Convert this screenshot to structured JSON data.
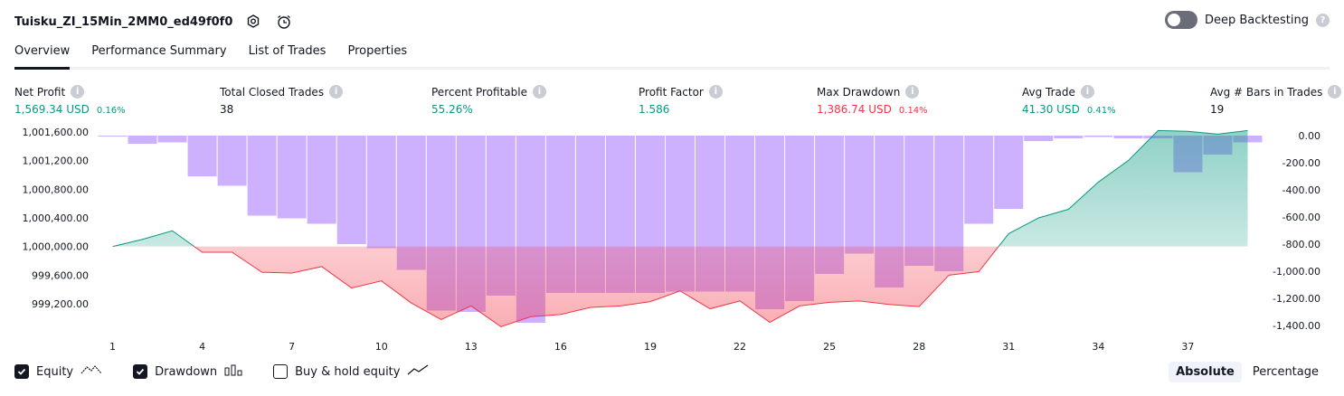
{
  "header": {
    "title": "Tuisku_ZI_15Min_2MM0_ed49f0f0",
    "settings_icon": "gear-icon",
    "alert_icon": "alarm-add-icon"
  },
  "deep_backtesting": {
    "label": "Deep Backtesting",
    "enabled": false,
    "help": "?"
  },
  "tabs": [
    {
      "label": "Overview",
      "active": true
    },
    {
      "label": "Performance Summary"
    },
    {
      "label": "List of Trades"
    },
    {
      "label": "Properties"
    }
  ],
  "metrics": [
    {
      "label": "Net Profit",
      "value": "1,569.34 USD",
      "pct": "0.16%",
      "color": "green"
    },
    {
      "label": "Total Closed Trades",
      "value": "38",
      "pct": "",
      "color": "dark"
    },
    {
      "label": "Percent Profitable",
      "value": "55.26%",
      "pct": "",
      "color": "green"
    },
    {
      "label": "Profit Factor",
      "value": "1.586",
      "pct": "",
      "color": "green"
    },
    {
      "label": "Max Drawdown",
      "value": "1,386.74 USD",
      "pct": "0.14%",
      "color": "red"
    },
    {
      "label": "Avg Trade",
      "value": "41.30 USD",
      "pct": "0.41%",
      "color": "green"
    },
    {
      "label": "Avg # Bars in Trades",
      "value": "19",
      "pct": "",
      "color": "dark"
    }
  ],
  "colors": {
    "green": "#089981",
    "red": "#f23645",
    "drawdown": "#c4a3ff",
    "buyhold": "#2962ff"
  },
  "chart_data": {
    "type": "line",
    "left_axis": {
      "ticks": [
        "1,001,600.00",
        "1,001,200.00",
        "1,000,800.00",
        "1,000,400.00",
        "1,000,000.00",
        "999,600.00",
        "999,200.00"
      ],
      "ylim": [
        999000,
        1001700
      ]
    },
    "right_axis": {
      "ticks": [
        "0.00",
        "-200.00",
        "-400.00",
        "-600.00",
        "-800.00",
        "-1,000.00",
        "-1,200.00",
        "-1,400.00"
      ],
      "ylim": [
        -1400,
        0
      ]
    },
    "x_ticks": [
      "1",
      "4",
      "7",
      "10",
      "13",
      "16",
      "19",
      "22",
      "25",
      "28",
      "31",
      "34",
      "37"
    ],
    "equity": [
      1000000,
      1000100,
      1000220,
      999920,
      999920,
      999640,
      999630,
      999720,
      999420,
      999520,
      999210,
      998980,
      999170,
      998880,
      999020,
      999050,
      999150,
      999170,
      999230,
      999380,
      999130,
      999240,
      998940,
      999170,
      999220,
      999240,
      999190,
      999160,
      999600,
      999650,
      1000180,
      1000400,
      1000520,
      1000900,
      1001200,
      1001620,
      1001610,
      1001570,
      1001620
    ],
    "drawdown": [
      -5,
      -60,
      -50,
      -300,
      -370,
      -590,
      -610,
      -650,
      -800,
      -830,
      -990,
      -1290,
      -1300,
      -1180,
      -1380,
      -1160,
      -1160,
      -1160,
      -1160,
      -1150,
      -1150,
      -1150,
      -1280,
      -1220,
      -1020,
      -870,
      -1120,
      -960,
      -1000,
      -650,
      -540,
      -40,
      -20,
      -10,
      -20,
      -20,
      -270,
      -140,
      -50
    ],
    "series": [
      {
        "name": "Equity"
      },
      {
        "name": "Drawdown"
      },
      {
        "name": "Buy & hold equity"
      }
    ]
  },
  "legend": [
    {
      "label": "Equity",
      "checked": true,
      "icon": "equity-line-icon"
    },
    {
      "label": "Drawdown",
      "checked": true,
      "icon": "drawdown-bars-icon"
    },
    {
      "label": "Buy & hold equity",
      "checked": false,
      "icon": "buyhold-line-icon"
    }
  ],
  "modes": [
    {
      "label": "Absolute",
      "active": true
    },
    {
      "label": "Percentage",
      "active": false
    }
  ]
}
